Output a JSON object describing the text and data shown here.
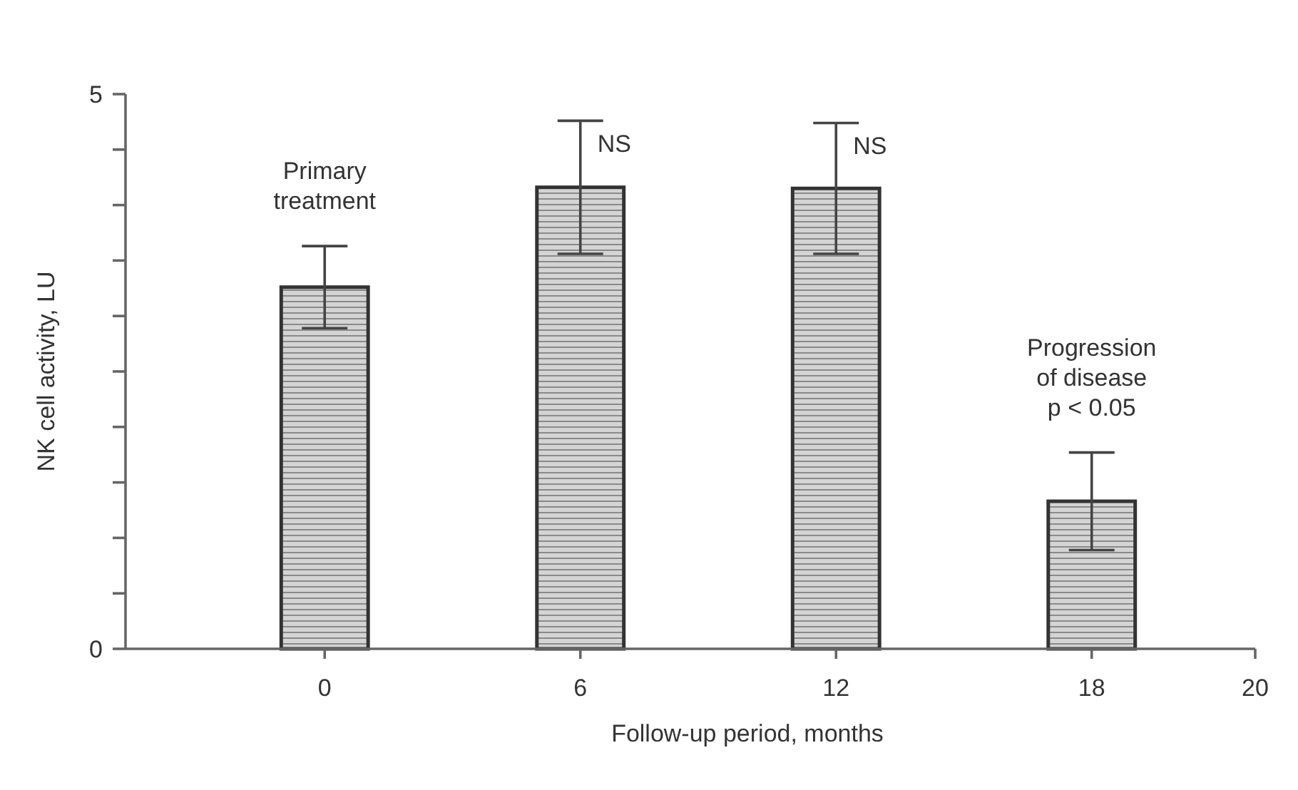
{
  "chart_data": {
    "type": "bar",
    "categories": [
      "0",
      "6",
      "12",
      "18"
    ],
    "values": [
      3.26,
      4.16,
      4.15,
      1.33
    ],
    "errors": [
      0.37,
      0.6,
      0.59,
      0.44
    ],
    "color": "#d4d4d4",
    "xlabel": "Follow-up period, months",
    "ylabel": "NK cell activity, LU",
    "ylim": [
      0,
      5
    ],
    "yticks": [
      0,
      {
        "value": 0.5,
        "label": null
      },
      {
        "value": 1,
        "label": null
      },
      {
        "value": 1.5,
        "label": null
      },
      {
        "value": 2,
        "label": null
      },
      {
        "value": 2.5,
        "label": null
      },
      {
        "value": 3,
        "label": null
      },
      {
        "value": 3.5,
        "label": null
      },
      {
        "value": 4,
        "label": null
      },
      {
        "value": 4.5,
        "label": null
      },
      5
    ],
    "annotations": [
      "Primary treatment",
      "NS",
      "NS",
      "Progression of disease p < 0.05",
      "20"
    ]
  }
}
